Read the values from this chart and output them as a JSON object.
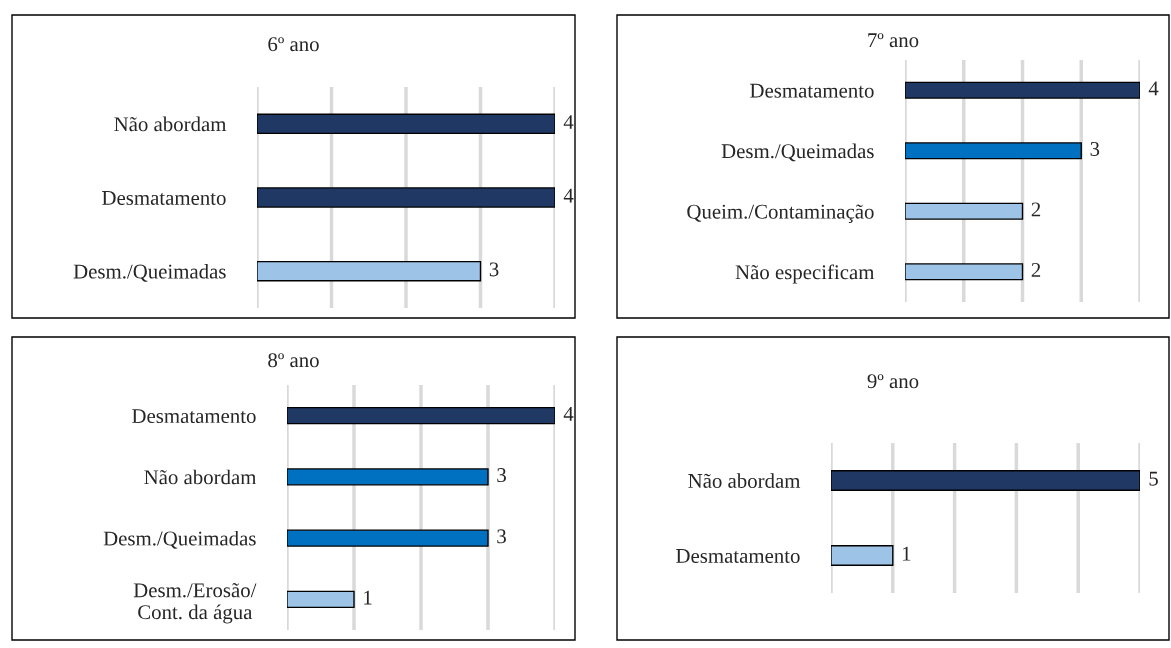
{
  "chart_data": [
    {
      "type": "bar",
      "orientation": "horizontal",
      "title": "6º ano",
      "categories": [
        "Não abordam",
        "Desmatamento",
        "Desm./Queimadas"
      ],
      "values": [
        4,
        4,
        3
      ],
      "colors": [
        "#1f3864",
        "#1f3864",
        "#9dc3e6"
      ],
      "data_labels": true,
      "grid": "x",
      "tick_labels": "y",
      "xlim": [
        0,
        4
      ],
      "xticks": [
        {
          "value": 0,
          "label": null
        },
        {
          "value": 1,
          "label": null
        },
        {
          "value": 2,
          "label": null
        },
        {
          "value": 3,
          "label": null
        },
        {
          "value": 4,
          "label": null
        }
      ]
    },
    {
      "type": "bar",
      "orientation": "horizontal",
      "title": "7º ano",
      "categories": [
        "Desmatamento",
        "Desm./Queimadas",
        "Queim./Contaminação",
        "Não especificam"
      ],
      "values": [
        4,
        3,
        2,
        2
      ],
      "colors": [
        "#1f3864",
        "#0070c0",
        "#9dc3e6",
        "#9dc3e6"
      ],
      "data_labels": true,
      "grid": "x",
      "tick_labels": "y",
      "xlim": [
        0,
        4
      ],
      "xticks": [
        {
          "value": 0,
          "label": null
        },
        {
          "value": 1,
          "label": null
        },
        {
          "value": 2,
          "label": null
        },
        {
          "value": 3,
          "label": null
        },
        {
          "value": 4,
          "label": null
        }
      ]
    },
    {
      "type": "bar",
      "orientation": "horizontal",
      "title": "8º ano",
      "categories": [
        "Desmatamento",
        "Não abordam",
        "Desm./Queimadas",
        "Desm./Erosão/\nCont. da água"
      ],
      "values": [
        4,
        3,
        3,
        1
      ],
      "colors": [
        "#1f3864",
        "#0070c0",
        "#0070c0",
        "#9dc3e6"
      ],
      "data_labels": true,
      "grid": "x",
      "tick_labels": "y",
      "xlim": [
        0,
        4
      ],
      "xticks": [
        {
          "value": 0,
          "label": null
        },
        {
          "value": 1,
          "label": null
        },
        {
          "value": 2,
          "label": null
        },
        {
          "value": 3,
          "label": null
        },
        {
          "value": 4,
          "label": null
        }
      ]
    },
    {
      "type": "bar",
      "orientation": "horizontal",
      "title": "9º ano",
      "categories": [
        "Não abordam",
        "Desmatamento"
      ],
      "values": [
        5,
        1
      ],
      "colors": [
        "#1f3864",
        "#9dc3e6"
      ],
      "data_labels": true,
      "grid": "x",
      "tick_labels": "y",
      "xlim": [
        0,
        5
      ],
      "xticks": [
        {
          "value": 0,
          "label": null
        },
        {
          "value": 1,
          "label": null
        },
        {
          "value": 2,
          "label": null
        },
        {
          "value": 3,
          "label": null
        },
        {
          "value": 4,
          "label": null
        },
        {
          "value": 5,
          "label": null
        }
      ]
    }
  ]
}
